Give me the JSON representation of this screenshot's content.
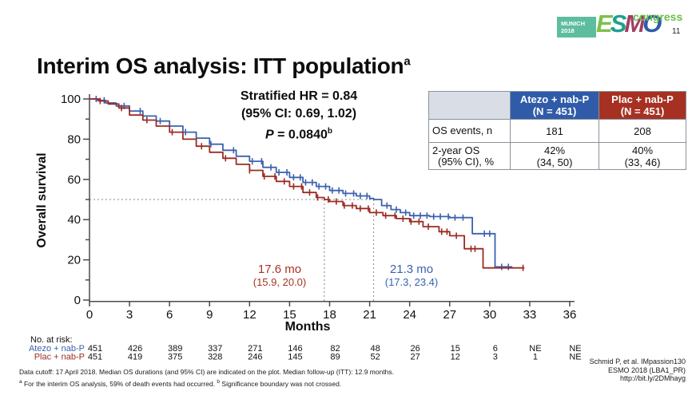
{
  "slide": {
    "title": "Interim OS analysis: ITT population",
    "title_sup": "a",
    "slide_number": "11",
    "logo": {
      "city": "MUNICH",
      "year": "2018",
      "e": "E",
      "s": "S",
      "m": "M",
      "o": "O",
      "congress": "congress"
    }
  },
  "annotation": {
    "line1": "Stratified HR = 0.84",
    "line2": "(95% CI: 0.69, 1.02)",
    "p_italic": "P",
    "p_rest": " = 0.0840",
    "p_sup": "b"
  },
  "stats_table": {
    "corner": "",
    "col_atezo": {
      "line1": "Atezo + nab-P",
      "line2": "(N = 451)",
      "color": "#2F5BA9"
    },
    "col_plac": {
      "line1": "Plac + nab-P",
      "line2": "(N = 451)",
      "color": "#A63122"
    },
    "row1": {
      "label": "OS events, n",
      "atezo": "181",
      "plac": "208"
    },
    "row2": {
      "label_line1": "2-year OS",
      "label_line2": "(95% CI), %",
      "atezo_line1": "42%",
      "atezo_line2": "(34, 50)",
      "plac_line1": "40%",
      "plac_line2": "(33, 46)"
    }
  },
  "medians": {
    "plac": {
      "value": "17.6 mo",
      "ci": "(15.9, 20.0)",
      "color": "#A93226"
    },
    "atezo": {
      "value": "21.3 mo",
      "ci": "(17.3, 23.4)",
      "color": "#3A62AE"
    }
  },
  "chart_data": {
    "type": "line",
    "subtype": "kaplan_meier_step",
    "title": "",
    "xlabel": "Months",
    "ylabel": "Overall survival",
    "xlim": [
      0,
      36
    ],
    "ylim": [
      0,
      100
    ],
    "x_ticks": [
      0,
      3,
      6,
      9,
      12,
      15,
      18,
      21,
      24,
      27,
      30,
      33,
      36
    ],
    "y_ticks": [
      0,
      20,
      40,
      60,
      80,
      100
    ],
    "y_minor_ticks": [
      10,
      30,
      50,
      70,
      90
    ],
    "grid": false,
    "reference_lines": {
      "horizontal_y": 50,
      "vertical_x": [
        17.6,
        21.3
      ]
    },
    "series": [
      {
        "name": "Atezo + nab-P",
        "color": "#3A62AE",
        "median_months": 21.3,
        "median_ci": "(17.3, 23.4)",
        "x": [
          0,
          0.6,
          1.2,
          2,
          3,
          4,
          5,
          6,
          7,
          8,
          9,
          10,
          11,
          12,
          13,
          14,
          15,
          16,
          17,
          18,
          19,
          20,
          21,
          21.3,
          21.9,
          22.6,
          23.3,
          24,
          25.5,
          27,
          28.7,
          30.4,
          31.7
        ],
        "y": [
          100,
          99.3,
          98,
          96.5,
          94,
          91.5,
          89,
          86.5,
          83.5,
          80.5,
          77.5,
          74.5,
          71.5,
          69,
          66,
          63.5,
          61,
          58.5,
          56.5,
          54.5,
          53,
          51.8,
          50.5,
          50,
          47,
          45,
          43.5,
          42,
          41.5,
          41,
          33,
          16.5,
          16.5
        ],
        "censor_x": [
          0.5,
          1.1,
          2.6,
          3.8,
          5.3,
          7.2,
          9.1,
          10.8,
          12.2,
          12.9,
          13.6,
          14.2,
          14.8,
          15.3,
          15.8,
          16.2,
          16.7,
          17.2,
          17.7,
          18.2,
          18.7,
          19.2,
          19.8,
          20.3,
          20.8,
          22.3,
          23.0,
          23.7,
          24.3,
          24.8,
          25.3,
          25.8,
          26.3,
          26.9,
          27.4,
          28.0,
          29.6,
          30.0,
          30.9,
          31.4
        ]
      },
      {
        "name": "Plac + nab-P",
        "color": "#9C2B23",
        "median_months": 17.6,
        "median_ci": "(15.9, 20.0)",
        "x": [
          0,
          0.7,
          1.4,
          2.2,
          3,
          4,
          5,
          6,
          7,
          8,
          9,
          10,
          11,
          12,
          13,
          14,
          15,
          16,
          17,
          17.6,
          18,
          19,
          20,
          21,
          22,
          23,
          24,
          25,
          26.2,
          27,
          28.1,
          29.5,
          32.6
        ],
        "y": [
          100,
          99,
          97.5,
          95.5,
          92,
          89.5,
          86.5,
          83.5,
          80,
          76.5,
          73.5,
          70.5,
          67.5,
          64.5,
          61.5,
          59,
          56.5,
          53.5,
          51,
          50,
          49,
          47,
          45.5,
          43.5,
          42,
          40.5,
          39,
          36.5,
          34,
          32,
          25.5,
          16,
          16
        ],
        "censor_x": [
          0.8,
          2.4,
          4.3,
          6.2,
          8.4,
          10.2,
          12.0,
          13.1,
          13.9,
          14.6,
          15.3,
          15.9,
          16.5,
          17.1,
          17.9,
          18.5,
          19.1,
          19.7,
          20.3,
          20.9,
          21.5,
          22.2,
          22.9,
          23.5,
          24.1,
          24.7,
          25.4,
          26.4,
          26.8,
          27.5,
          28.6,
          28.9,
          32.5
        ]
      }
    ]
  },
  "risk_table": {
    "title": "No. at risk:",
    "rows": [
      {
        "label": "Atezo + nab-P",
        "color": "#3A62AE",
        "counts": [
          "451",
          "426",
          "389",
          "337",
          "271",
          "146",
          "82",
          "48",
          "26",
          "15",
          "6",
          "NE",
          "NE"
        ]
      },
      {
        "label": "Plac + nab-P",
        "color": "#9C2B23",
        "counts": [
          "451",
          "419",
          "375",
          "328",
          "246",
          "145",
          "89",
          "52",
          "27",
          "12",
          "3",
          "1",
          "NE"
        ]
      }
    ]
  },
  "footnotes": {
    "line1": "Data cutoff: 17 April 2018. Median OS durations (and 95% CI) are indicated on the plot. Median follow-up (ITT): 12.9 months.",
    "sup_a": "a",
    "line2a": " For the interim OS analysis, 59% of death events had occurred. ",
    "sup_b": "b",
    "line2b": " Significance boundary was not crossed."
  },
  "citation": {
    "line1": "Schmid P, et al. IMpassion130",
    "line2": "ESMO 2018 (LBA1_PR)",
    "line3": "http://bit.ly/2DMhayg"
  }
}
